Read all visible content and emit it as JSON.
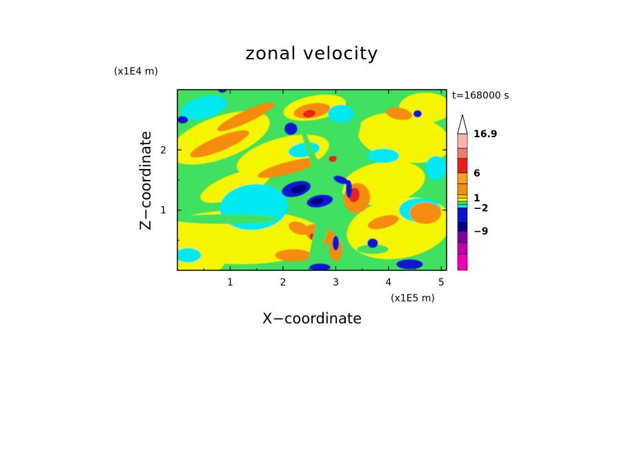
{
  "chart_data": {
    "type": "heatmap",
    "title": "zonal velocity",
    "xlabel": "X−coordinate",
    "ylabel": "Z−coordinate",
    "x_scale_label": "(x1E5 m)",
    "y_scale_label": "(x1E4 m)",
    "time_label": "t=168000 s",
    "xlim": [
      0,
      5.1
    ],
    "ylim": [
      0,
      3.0
    ],
    "x_ticks": [
      "1",
      "2",
      "3",
      "4",
      "5"
    ],
    "y_ticks": [
      "1",
      "2"
    ],
    "x_tick_values": [
      1,
      2,
      3,
      4,
      5
    ],
    "y_tick_values": [
      1,
      2
    ],
    "colorbar": {
      "max_label": "16.9",
      "extend": "max",
      "labeled_levels": [
        "16.9",
        "6",
        "1",
        "−2",
        "−9"
      ],
      "colors_top_to_bottom": [
        "#f8b4a8",
        "#f07a6e",
        "#e8201a",
        "#f5a020",
        "#f58c10",
        "#f0d000",
        "#f5f500",
        "#40e060",
        "#00e8f0",
        "#0a14d0",
        "#000080",
        "#8000a0",
        "#c000b0",
        "#f000b0"
      ]
    },
    "palette": {
      "pink": "#f000b0",
      "purple": "#8000a0",
      "navy": "#000080",
      "blue": "#0a14d0",
      "cyan": "#00e8f0",
      "green": "#40e060",
      "yellow": "#f5f500",
      "orange": "#f58c10",
      "red": "#e8201a",
      "salmon": "#f07a6e"
    }
  }
}
